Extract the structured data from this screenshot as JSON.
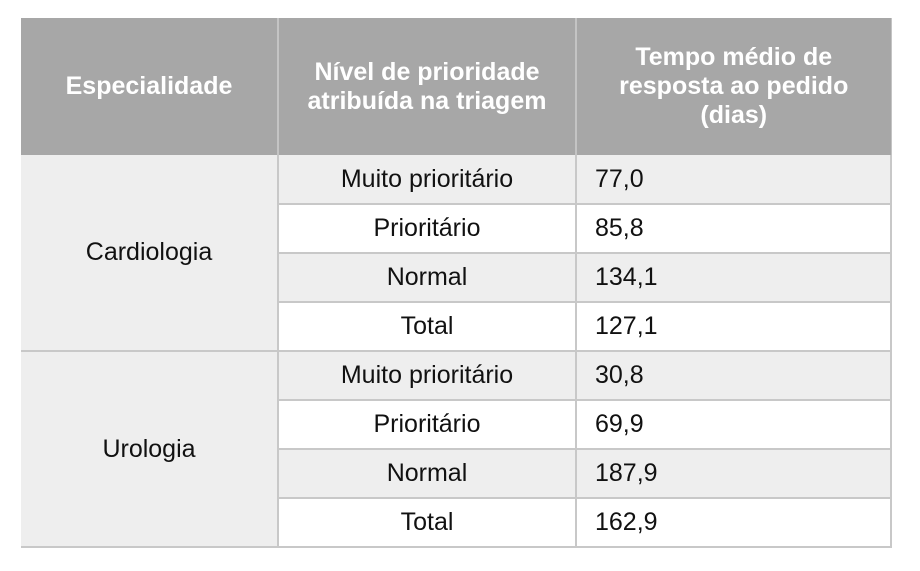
{
  "header": {
    "specialty": "Especialidade",
    "priority_line1": "Nível de prioridade",
    "priority_line2": "atribuída na triagem",
    "time_line1": "Tempo médio de",
    "time_line2": "resposta ao pedido",
    "time_line3": "(dias)"
  },
  "groups": [
    {
      "specialty": "Cardiologia",
      "rows": [
        {
          "level": "Muito prioritário",
          "value": "77,0"
        },
        {
          "level": "Prioritário",
          "value": "85,8"
        },
        {
          "level": "Normal",
          "value": "134,1"
        },
        {
          "level": "Total",
          "value": "127,1"
        }
      ]
    },
    {
      "specialty": "Urologia",
      "rows": [
        {
          "level": "Muito prioritário",
          "value": "30,8"
        },
        {
          "level": "Prioritário",
          "value": "69,9"
        },
        {
          "level": "Normal",
          "value": "187,9"
        },
        {
          "level": "Total",
          "value": "162,9"
        }
      ]
    }
  ]
}
